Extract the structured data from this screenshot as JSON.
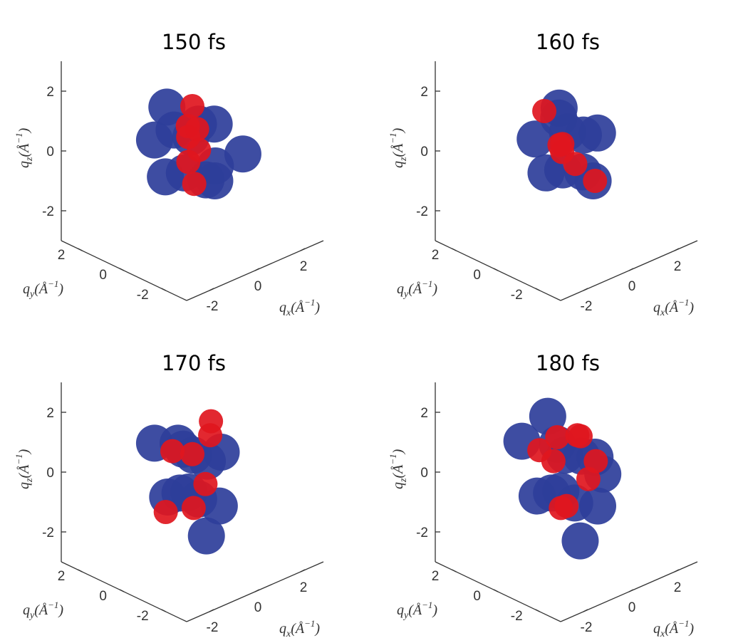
{
  "chart_data": [
    {
      "type": "scatter",
      "title": "150 fs",
      "xlabel": "q_x(Å^-1)",
      "ylabel": "q_y(Å^-1)",
      "zlabel": "q_z(Å^-1)",
      "xticks": [
        "-2",
        "0",
        "2"
      ],
      "yticks": [
        "-2",
        "0",
        "2"
      ],
      "zticks": [
        "-2",
        "0",
        "2"
      ],
      "xlim": [
        -3,
        3
      ],
      "ylim": [
        -3,
        3
      ],
      "zlim": [
        -3,
        3
      ],
      "series": [
        {
          "color": "#2e3e9a",
          "x": [
            -1.2,
            -0.8,
            -0.2,
            0.5,
            1.0,
            1.3,
            -1.0,
            0.2,
            0.8,
            -0.5,
            0.3,
            1.1
          ],
          "y": [
            0.5,
            -0.8,
            1.0,
            -0.5,
            0.8,
            -1.0,
            0.2,
            0.6,
            -0.2,
            -1.2,
            1.2,
            0.1
          ],
          "z": [
            0.6,
            1.0,
            1.2,
            0.9,
            0.3,
            -0.2,
            -0.6,
            -1.0,
            -1.2,
            -0.4,
            0.2,
            -0.9
          ]
        },
        {
          "color": "#e0161e",
          "x": [
            -0.2,
            0.0,
            0.2,
            0.1,
            -0.1,
            0.3,
            0.0
          ],
          "y": [
            0.0,
            0.2,
            -0.1,
            0.3,
            -0.2,
            0.1,
            0.0
          ],
          "z": [
            0.9,
            0.4,
            0.0,
            -0.5,
            -1.0,
            0.6,
            1.5
          ]
        }
      ]
    },
    {
      "type": "scatter",
      "title": "160 fs",
      "xlabel": "q_x(Å^-1)",
      "ylabel": "q_y(Å^-1)",
      "zlabel": "q_z(Å^-1)",
      "xticks": [
        "-2",
        "0",
        "2"
      ],
      "yticks": [
        "-2",
        "0",
        "2"
      ],
      "zticks": [
        "-2",
        "0",
        "2"
      ],
      "xlim": [
        -3,
        3
      ],
      "ylim": [
        -3,
        3
      ],
      "zlim": [
        -3,
        3
      ],
      "series": [
        {
          "color": "#2e3e9a",
          "x": [
            -1.0,
            -0.5,
            0.4,
            1.0,
            1.3,
            -0.8,
            0.3,
            0.9,
            -0.2,
            0.6
          ],
          "y": [
            0.4,
            -0.6,
            0.8,
            -0.4,
            0.6,
            0.1,
            0.5,
            -0.3,
            -1.0,
            1.0
          ],
          "z": [
            0.6,
            1.0,
            0.7,
            0.4,
            -0.1,
            -0.5,
            -0.9,
            -1.2,
            -0.3,
            0.9
          ]
        },
        {
          "color": "#e0161e",
          "x": [
            -0.3,
            0.0,
            0.3,
            0.1,
            -0.6,
            0.8
          ],
          "y": [
            0.0,
            0.2,
            -0.1,
            0.3,
            0.4,
            -0.5
          ],
          "z": [
            0.3,
            -0.1,
            -0.5,
            0.1,
            1.4,
            -1.1
          ]
        }
      ]
    },
    {
      "type": "scatter",
      "title": "170 fs",
      "xlabel": "q_x(Å^-1)",
      "ylabel": "q_y(Å^-1)",
      "zlabel": "q_z(Å^-1)",
      "xticks": [
        "-2",
        "0",
        "2"
      ],
      "yticks": [
        "-2",
        "0",
        "2"
      ],
      "zticks": [
        "-2",
        "0",
        "2"
      ],
      "xlim": [
        -3,
        3
      ],
      "ylim": [
        -3,
        3
      ],
      "zlim": [
        -3,
        3
      ],
      "series": [
        {
          "color": "#2e3e9a",
          "x": [
            -1.2,
            -0.6,
            0.2,
            0.9,
            1.3,
            -0.9,
            0.4,
            1.0,
            -0.3,
            0.6,
            0.0,
            -1.0
          ],
          "y": [
            0.5,
            -0.7,
            0.9,
            -0.4,
            0.7,
            0.2,
            0.6,
            -0.2,
            -1.0,
            1.1,
            -0.3,
            -0.5
          ],
          "z": [
            1.2,
            1.0,
            0.6,
            0.5,
            -0.3,
            -0.6,
            -1.0,
            -1.4,
            -1.7,
            0.2,
            -0.8,
            -0.2
          ]
        },
        {
          "color": "#e0161e",
          "x": [
            -0.6,
            0.0,
            0.6,
            1.0,
            -0.8,
            0.3,
            -0.4
          ],
          "y": [
            0.3,
            0.0,
            -0.2,
            0.2,
            0.4,
            -0.3,
            -0.5
          ],
          "z": [
            0.8,
            0.6,
            1.1,
            1.3,
            -1.2,
            -0.4,
            -0.9
          ]
        }
      ]
    },
    {
      "type": "scatter",
      "title": "180 fs",
      "xlabel": "q_x(Å^-1)",
      "ylabel": "q_y(Å^-1)",
      "zlabel": "q_z(Å^-1)",
      "xticks": [
        "-2",
        "0",
        "2"
      ],
      "yticks": [
        "-2",
        "0",
        "2"
      ],
      "zticks": [
        "-2",
        "0",
        "2"
      ],
      "xlim": [
        -3,
        3
      ],
      "ylim": [
        -3,
        3
      ],
      "zlim": [
        -3,
        3
      ],
      "series": [
        {
          "color": "#2e3e9a",
          "x": [
            -1.4,
            -0.8,
            0.1,
            0.8,
            1.4,
            -1.1,
            0.4,
            1.1,
            -0.4,
            0.7,
            0.0,
            -1.2,
            1.6
          ],
          "y": [
            0.6,
            -0.8,
            1.0,
            -0.5,
            0.8,
            0.2,
            0.7,
            -0.3,
            -1.1,
            1.2,
            -0.4,
            -0.6,
            0.0
          ],
          "z": [
            1.3,
            1.1,
            1.5,
            0.4,
            -0.2,
            -0.5,
            -1.0,
            -1.4,
            -1.8,
            0.3,
            -0.9,
            -0.1,
            -0.6
          ]
        },
        {
          "color": "#e0161e",
          "x": [
            -1.0,
            -0.4,
            0.3,
            0.9,
            1.2,
            -0.2,
            0.6,
            -0.7,
            0.1
          ],
          "y": [
            0.2,
            0.0,
            -0.2,
            0.3,
            -0.1,
            0.4,
            -0.4,
            -0.5,
            0.1
          ],
          "z": [
            1.0,
            1.3,
            1.2,
            0.8,
            0.0,
            0.3,
            -0.3,
            -0.8,
            -1.2
          ]
        }
      ]
    }
  ]
}
